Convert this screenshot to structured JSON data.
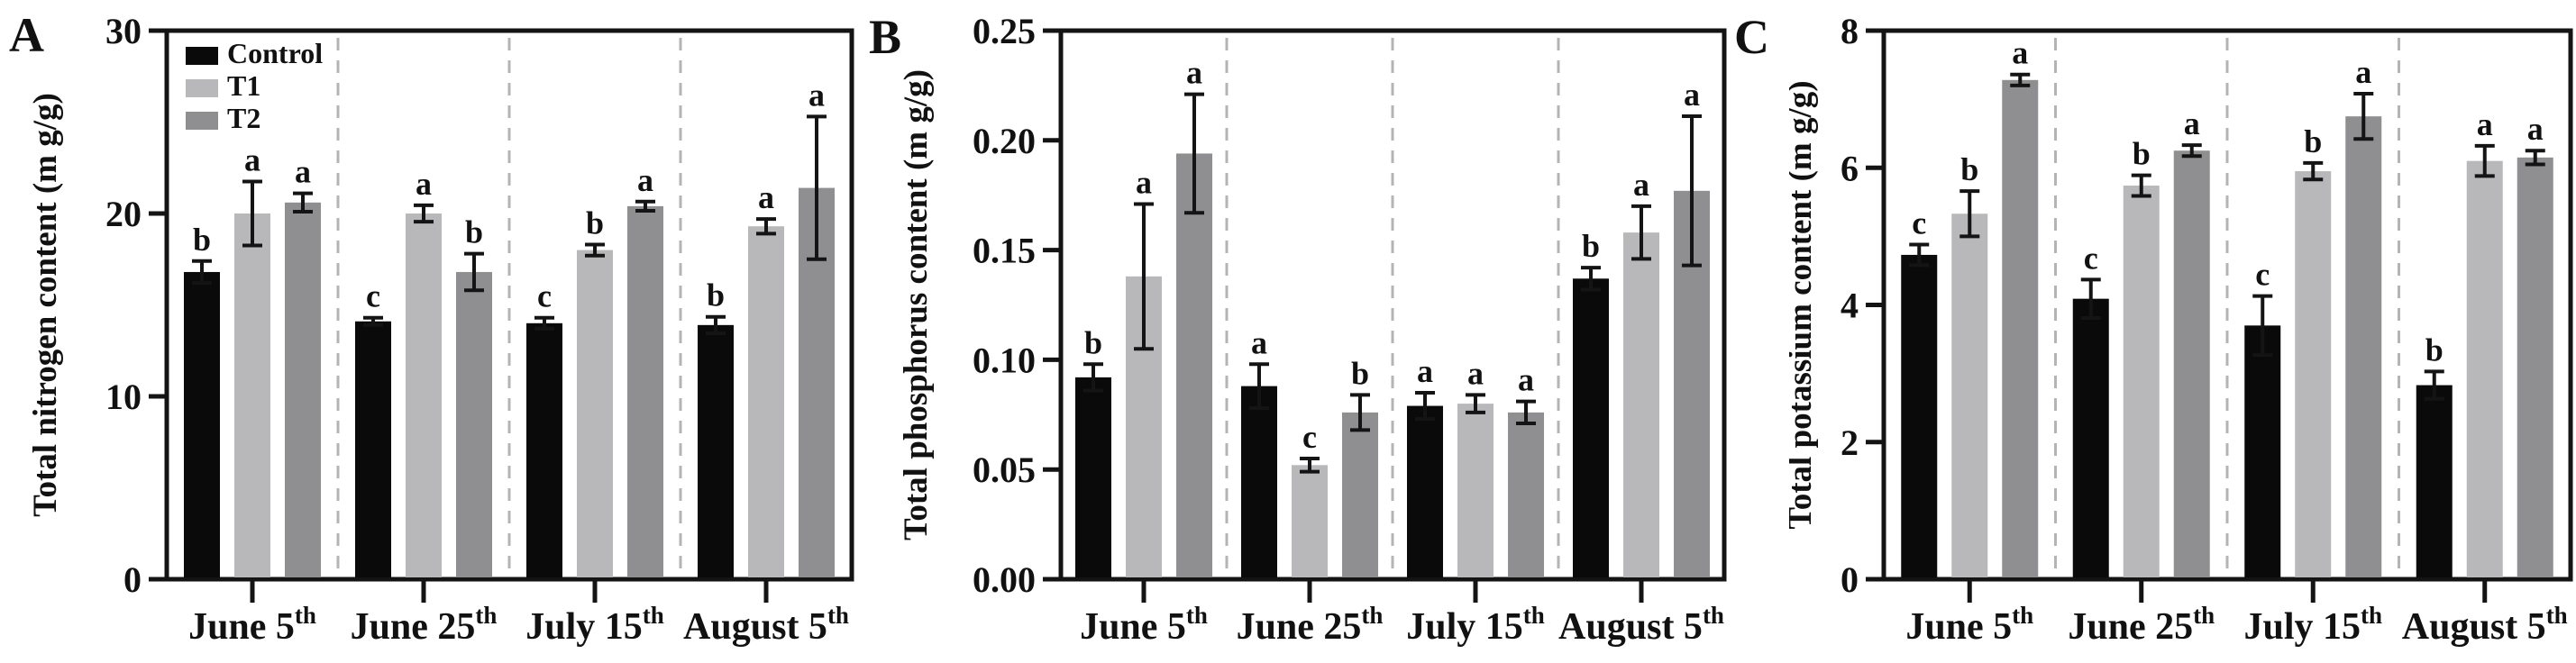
{
  "colors": {
    "axis": "#141414",
    "separator": "#b4b4b4",
    "background": "#ffffff"
  },
  "legend": {
    "items": [
      {
        "label": "Control",
        "color": "#0a0a0a"
      },
      {
        "label": "T1",
        "color": "#b8b8bb"
      },
      {
        "label": "T2",
        "color": "#8f8f92"
      }
    ]
  },
  "chart_data": [
    {
      "type": "bar",
      "panel_label": "A",
      "ylabel": "Total nitrogen content (m g/g)",
      "ylim": [
        0,
        30
      ],
      "yticks": [
        {
          "value": 0,
          "label": "0"
        },
        {
          "value": 10,
          "label": "10"
        },
        {
          "value": 20,
          "label": "20"
        },
        {
          "value": 30,
          "label": "30"
        }
      ],
      "categories": [
        {
          "base": "June 5",
          "sup": "th"
        },
        {
          "base": "June 25",
          "sup": "th"
        },
        {
          "base": "July 15",
          "sup": "th"
        },
        {
          "base": "August 5",
          "sup": "th"
        }
      ],
      "show_legend": true,
      "group_separators": "dashed",
      "series": [
        {
          "name": "Control",
          "color": "#0a0a0a",
          "values": [
            16.8,
            14.1,
            14.0,
            13.9
          ],
          "errors": [
            0.6,
            0.2,
            0.3,
            0.45
          ],
          "letters": [
            "b",
            "c",
            "c",
            "b"
          ]
        },
        {
          "name": "T1",
          "color": "#b8b8bb",
          "values": [
            20.0,
            20.0,
            18.0,
            19.3
          ],
          "errors": [
            1.75,
            0.45,
            0.3,
            0.4
          ],
          "letters": [
            "a",
            "a",
            "b",
            "a"
          ]
        },
        {
          "name": "T2",
          "color": "#8f8f92",
          "values": [
            20.6,
            16.8,
            20.4,
            21.4
          ],
          "errors": [
            0.5,
            1.0,
            0.25,
            3.9
          ],
          "letters": [
            "a",
            "b",
            "a",
            "a"
          ]
        }
      ]
    },
    {
      "type": "bar",
      "panel_label": "B",
      "ylabel": "Total phosphorus content (m g/g)",
      "ylim": [
        0,
        0.25
      ],
      "yticks": [
        {
          "value": 0,
          "label": "0.00"
        },
        {
          "value": 0.05,
          "label": "0.05"
        },
        {
          "value": 0.1,
          "label": "0.10"
        },
        {
          "value": 0.15,
          "label": "0.15"
        },
        {
          "value": 0.2,
          "label": "0.20"
        },
        {
          "value": 0.25,
          "label": "0.25"
        }
      ],
      "categories": [
        {
          "base": "June 5",
          "sup": "th"
        },
        {
          "base": "June 25",
          "sup": "th"
        },
        {
          "base": "July 15",
          "sup": "th"
        },
        {
          "base": "August 5",
          "sup": "th"
        }
      ],
      "show_legend": false,
      "group_separators": "dashed",
      "series": [
        {
          "name": "Control",
          "color": "#0a0a0a",
          "values": [
            0.092,
            0.088,
            0.079,
            0.137
          ],
          "errors": [
            0.006,
            0.01,
            0.006,
            0.005
          ],
          "letters": [
            "b",
            "a",
            "a",
            "b"
          ]
        },
        {
          "name": "T1",
          "color": "#b8b8bb",
          "values": [
            0.138,
            0.052,
            0.08,
            0.158
          ],
          "errors": [
            0.033,
            0.003,
            0.004,
            0.012
          ],
          "letters": [
            "a",
            "c",
            "a",
            "a"
          ]
        },
        {
          "name": "T2",
          "color": "#8f8f92",
          "values": [
            0.194,
            0.076,
            0.076,
            0.177
          ],
          "errors": [
            0.027,
            0.008,
            0.005,
            0.034
          ],
          "letters": [
            "a",
            "b",
            "a",
            "a"
          ]
        }
      ]
    },
    {
      "type": "bar",
      "panel_label": "C",
      "ylabel": "Total potassium content (m g/g)",
      "ylim": [
        0,
        8
      ],
      "yticks": [
        {
          "value": 0,
          "label": "0"
        },
        {
          "value": 2,
          "label": "2"
        },
        {
          "value": 4,
          "label": "4"
        },
        {
          "value": 6,
          "label": "6"
        },
        {
          "value": 8,
          "label": "8"
        }
      ],
      "categories": [
        {
          "base": "June 5",
          "sup": "th"
        },
        {
          "base": "June 25",
          "sup": "th"
        },
        {
          "base": "July 15",
          "sup": "th"
        },
        {
          "base": "August 5",
          "sup": "th"
        }
      ],
      "show_legend": false,
      "group_separators": "dashed",
      "series": [
        {
          "name": "Control",
          "color": "#0a0a0a",
          "values": [
            4.73,
            4.09,
            3.7,
            2.83
          ],
          "errors": [
            0.15,
            0.28,
            0.43,
            0.2
          ],
          "letters": [
            "c",
            "c",
            "c",
            "b"
          ]
        },
        {
          "name": "T1",
          "color": "#b8b8bb",
          "values": [
            5.33,
            5.74,
            5.95,
            6.1
          ],
          "errors": [
            0.33,
            0.15,
            0.12,
            0.22
          ],
          "letters": [
            "b",
            "b",
            "b",
            "a"
          ]
        },
        {
          "name": "T2",
          "color": "#8f8f92",
          "values": [
            7.28,
            6.25,
            6.75,
            6.15
          ],
          "errors": [
            0.08,
            0.08,
            0.33,
            0.1
          ],
          "letters": [
            "a",
            "a",
            "a",
            "a"
          ]
        }
      ]
    }
  ]
}
